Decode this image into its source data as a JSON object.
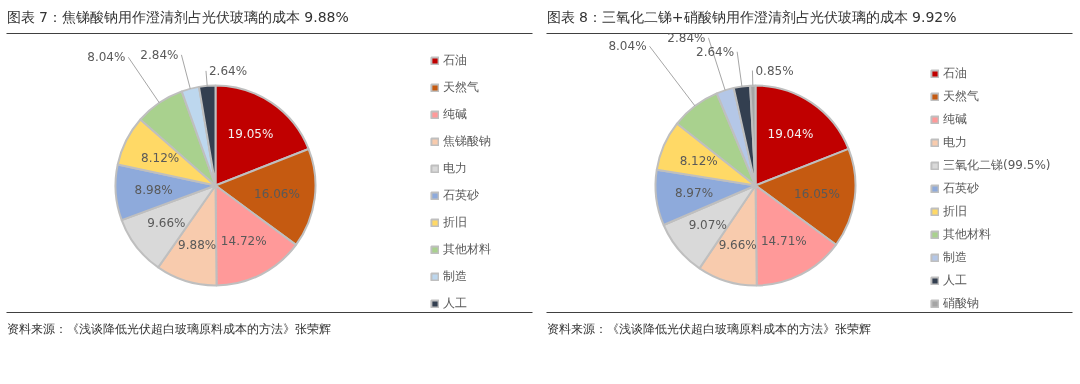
{
  "chart_data": [
    {
      "type": "pie",
      "title": "图表 7：焦锑酸钠用作澄清剂占光伏玻璃的成本 9.88%",
      "categories": [
        "石油",
        "天然气",
        "纯碱",
        "焦锑酸钠",
        "电力",
        "石英砂",
        "折旧",
        "其他材料",
        "制造",
        "人工"
      ],
      "values": [
        19.05,
        16.06,
        14.72,
        9.88,
        9.66,
        8.98,
        8.12,
        8.04,
        2.84,
        2.64
      ],
      "colors": [
        "#c00000",
        "#c55a11",
        "#ff9999",
        "#f8cbad",
        "#d9d9d9",
        "#8eaadb",
        "#ffd966",
        "#a9d18e",
        "#bdd7ee",
        "#333f50"
      ],
      "value_labels": [
        "19.05%",
        "16.06%",
        "14.72%",
        "9.88%",
        "9.66%",
        "8.98%",
        "8.12%",
        "8.04%",
        "2.84%",
        "2.64%"
      ],
      "legend": "right",
      "annotations": [
        "资料来源：《浅谈降低光伏超白玻璃原料成本的方法》张荣辉"
      ]
    },
    {
      "type": "pie",
      "title": "图表 8：三氧化二锑+硝酸钠用作澄清剂占光伏玻璃的成本 9.92%",
      "categories": [
        "石油",
        "天然气",
        "纯碱",
        "电力",
        "三氧化二锑(99.5%)",
        "石英砂",
        "折旧",
        "其他材料",
        "制造",
        "人工",
        "硝酸钠"
      ],
      "values": [
        19.04,
        16.05,
        14.71,
        9.66,
        9.07,
        8.97,
        8.12,
        8.04,
        2.84,
        2.64,
        0.85
      ],
      "colors": [
        "#c00000",
        "#c55a11",
        "#ff9999",
        "#f8cbad",
        "#d9d9d9",
        "#8eaadb",
        "#ffd966",
        "#a9d18e",
        "#b4c7e7",
        "#333f50",
        "#a5a5a5"
      ],
      "value_labels": [
        "19.04%",
        "16.05%",
        "14.71%",
        "9.66%",
        "9.07%",
        "8.97%",
        "8.12%",
        "8.04%",
        "2.84%",
        "2.64%",
        "0.85%"
      ],
      "legend": "right",
      "annotations": [
        "资料来源：《浅谈降低光伏超白玻璃原料成本的方法》张荣辉"
      ]
    }
  ]
}
